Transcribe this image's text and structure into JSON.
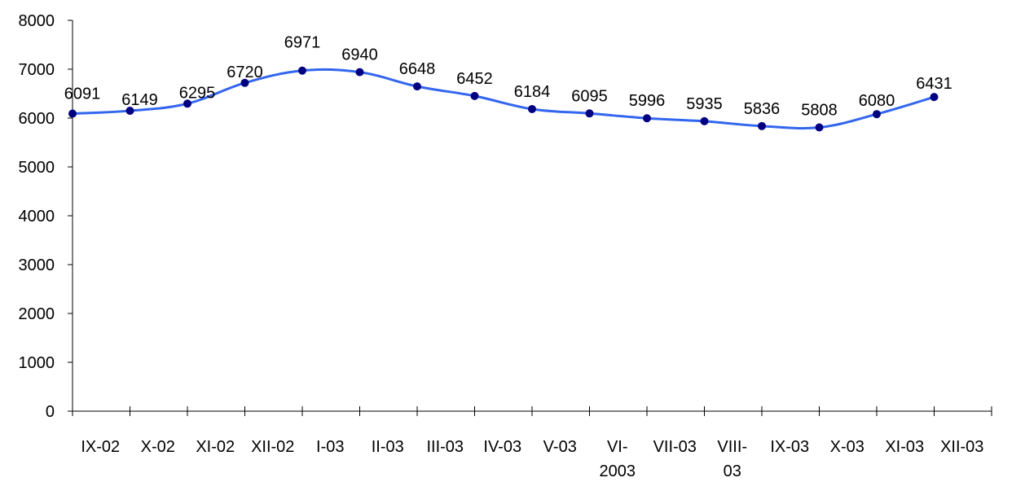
{
  "chart_data": {
    "type": "line",
    "title": "",
    "xlabel": "",
    "ylabel": "",
    "categories": [
      "IX-02",
      "X-02",
      "XI-02",
      "XII-02",
      "I-03",
      "II-03",
      "III-03",
      "IV-03",
      "V-03",
      "VI-2003",
      "VII-03",
      "VIII-03",
      "IX-03",
      "X-03",
      "XI-03",
      "XII-03"
    ],
    "category_labels": [
      [
        "IX-02"
      ],
      [
        "X-02"
      ],
      [
        "XI-02"
      ],
      [
        "XII-02"
      ],
      [
        "I-03"
      ],
      [
        "II-03"
      ],
      [
        "III-03"
      ],
      [
        "IV-03"
      ],
      [
        "V-03"
      ],
      [
        "VI-",
        "2003"
      ],
      [
        "VII-03"
      ],
      [
        "VIII-",
        "03"
      ],
      [
        "IX-03"
      ],
      [
        "X-03"
      ],
      [
        "XI-03"
      ],
      [
        "XII-03"
      ]
    ],
    "series": [
      {
        "values": [
          6091,
          6149,
          6295,
          6720,
          6971,
          6940,
          6648,
          6452,
          6184,
          6095,
          5996,
          5935,
          5836,
          5808,
          6080,
          6431
        ],
        "labels": [
          "6091",
          "6149",
          "6295",
          "6720",
          "6971",
          "6940",
          "6648",
          "6452",
          "6184",
          "6095",
          "5996",
          "5935",
          "5836",
          "5808",
          "6080",
          "6431"
        ]
      }
    ],
    "ylim": [
      0,
      8000
    ],
    "yticks": [
      "0",
      "1000",
      "2000",
      "3000",
      "4000",
      "5000",
      "6000",
      "7000",
      "8000"
    ],
    "grid": false,
    "legend": "none",
    "smooth": true,
    "colors": {
      "line": "#3366ee",
      "marker": "#000080",
      "axis": "#000000"
    }
  }
}
